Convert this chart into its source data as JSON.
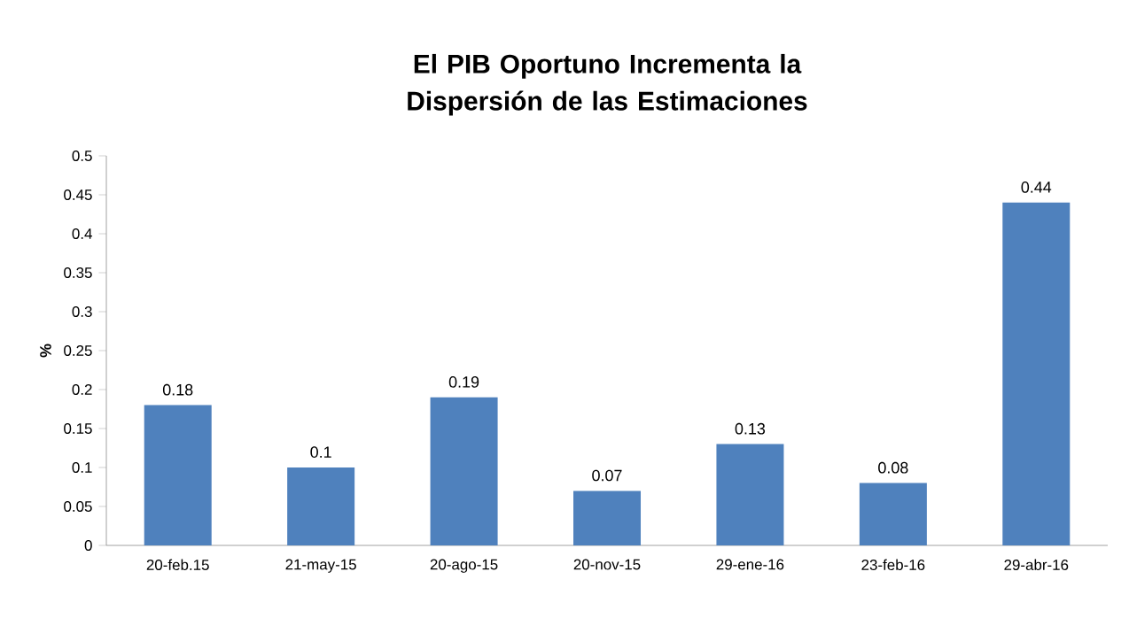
{
  "chart_data": {
    "type": "bar",
    "title": "El PIB Oportuno Incrementa la Dispersión de las Estimaciones",
    "ylabel": "%",
    "categories": [
      "20-feb.15",
      "21-may-15",
      "20-ago-15",
      "20-nov-15",
      "29-ene-16",
      "23-feb-16",
      "29-abr-16"
    ],
    "values": [
      0.18,
      0.1,
      0.19,
      0.07,
      0.13,
      0.08,
      0.44
    ],
    "color": "#4f81bd",
    "ylim": [
      0,
      0.5
    ],
    "yticks": [
      0,
      0.05,
      0.1,
      0.15,
      0.2,
      0.25,
      0.3,
      0.35,
      0.4,
      0.45,
      0.5
    ],
    "data_labels": true
  }
}
